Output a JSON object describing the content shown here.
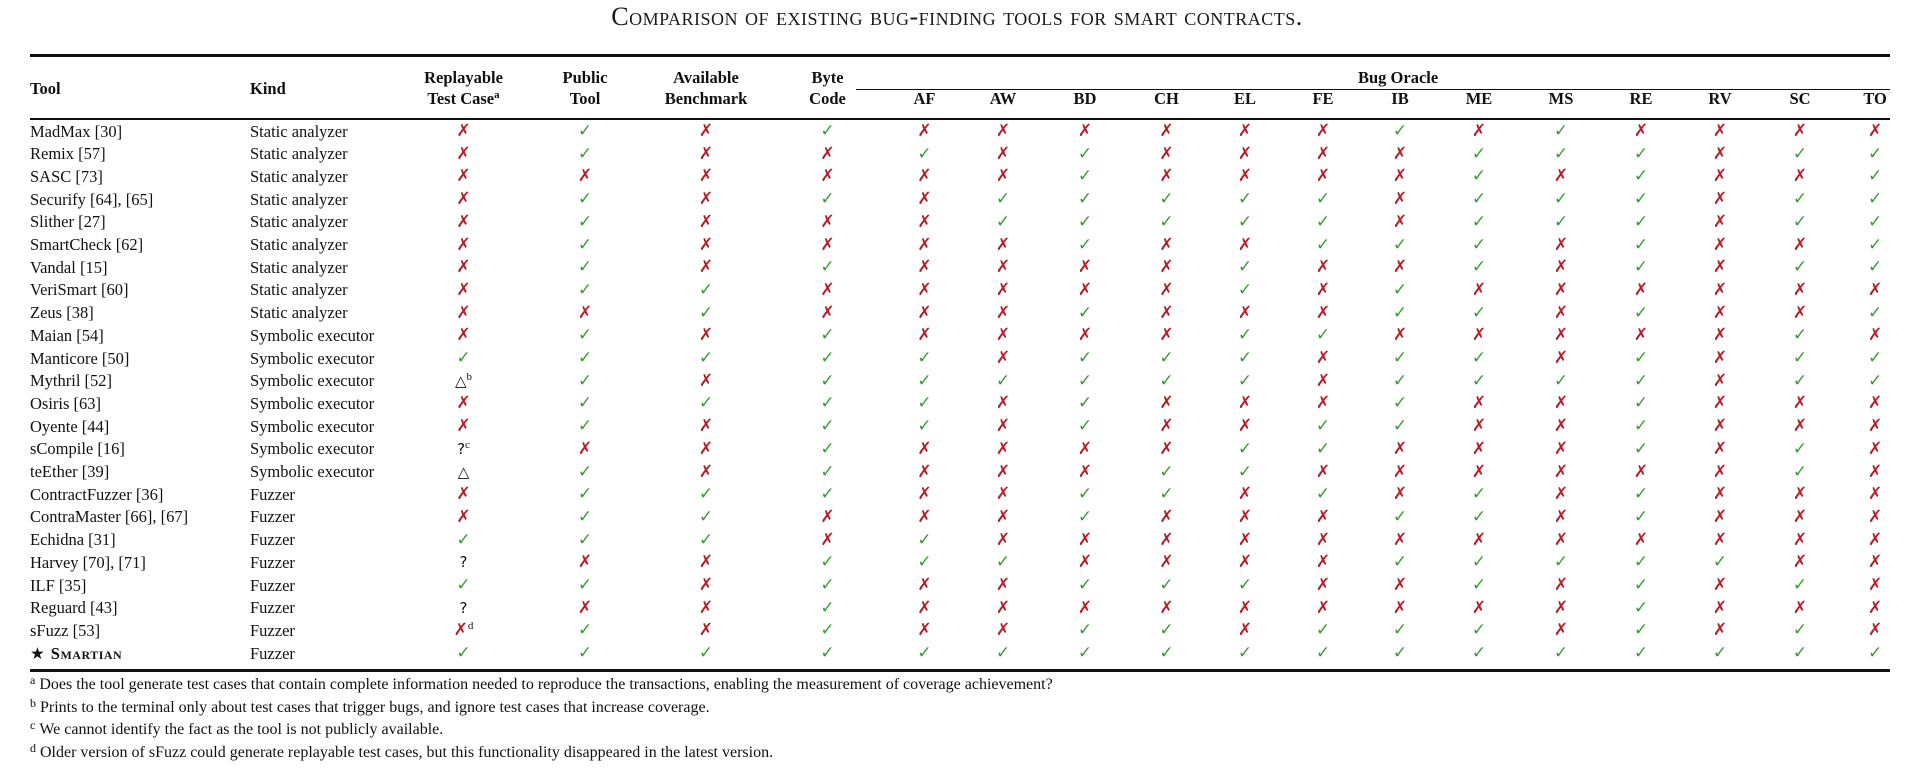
{
  "caption": "Comparison of existing bug-finding tools for smart contracts.",
  "headers": {
    "tool": "Tool",
    "kind": "Kind",
    "replayable_l1": "Replayable",
    "replayable_l2": "Test Case",
    "replayable_sup": "a",
    "public_l1": "Public",
    "public_l2": "Tool",
    "benchmark_l1": "Available",
    "benchmark_l2": "Benchmark",
    "bytecode_l1": "Byte",
    "bytecode_l2": "Code",
    "bug_oracle": "Bug Oracle",
    "oracles": [
      "AF",
      "AW",
      "BD",
      "CH",
      "EL",
      "FE",
      "IB",
      "ME",
      "MS",
      "RE",
      "RV",
      "SC",
      "TO"
    ]
  },
  "legend_symbols": {
    "check": "✓",
    "cross": "✗",
    "triangle": "△",
    "question": "?"
  },
  "colors": {
    "check": "#3a9a34",
    "cross": "#b3202a"
  },
  "rows": [
    {
      "tool": "MadMax [30]",
      "kind": "Static analyzer",
      "replay": "✗",
      "replay_sup": "",
      "public": "✓",
      "bench": "✗",
      "byte": "✓",
      "oracle": [
        "✗",
        "✗",
        "✗",
        "✗",
        "✗",
        "✗",
        "✓",
        "✗",
        "✓",
        "✗",
        "✗",
        "✗",
        "✗"
      ]
    },
    {
      "tool": "Remix [57]",
      "kind": "Static analyzer",
      "replay": "✗",
      "replay_sup": "",
      "public": "✓",
      "bench": "✗",
      "byte": "✗",
      "oracle": [
        "✓",
        "✗",
        "✓",
        "✗",
        "✗",
        "✗",
        "✗",
        "✓",
        "✓",
        "✓",
        "✗",
        "✓",
        "✓"
      ]
    },
    {
      "tool": "SASC [73]",
      "kind": "Static analyzer",
      "replay": "✗",
      "replay_sup": "",
      "public": "✗",
      "bench": "✗",
      "byte": "✗",
      "oracle": [
        "✗",
        "✗",
        "✓",
        "✗",
        "✗",
        "✗",
        "✗",
        "✓",
        "✗",
        "✓",
        "✗",
        "✗",
        "✓"
      ]
    },
    {
      "tool": "Securify [64], [65]",
      "kind": "Static analyzer",
      "replay": "✗",
      "replay_sup": "",
      "public": "✓",
      "bench": "✗",
      "byte": "✓",
      "oracle": [
        "✗",
        "✓",
        "✓",
        "✓",
        "✓",
        "✓",
        "✗",
        "✓",
        "✓",
        "✓",
        "✗",
        "✓",
        "✓"
      ]
    },
    {
      "tool": "Slither [27]",
      "kind": "Static analyzer",
      "replay": "✗",
      "replay_sup": "",
      "public": "✓",
      "bench": "✗",
      "byte": "✗",
      "oracle": [
        "✗",
        "✓",
        "✓",
        "✓",
        "✓",
        "✓",
        "✗",
        "✓",
        "✓",
        "✓",
        "✗",
        "✓",
        "✓"
      ]
    },
    {
      "tool": "SmartCheck [62]",
      "kind": "Static analyzer",
      "replay": "✗",
      "replay_sup": "",
      "public": "✓",
      "bench": "✗",
      "byte": "✗",
      "oracle": [
        "✗",
        "✗",
        "✓",
        "✗",
        "✗",
        "✓",
        "✓",
        "✓",
        "✗",
        "✓",
        "✗",
        "✗",
        "✓"
      ]
    },
    {
      "tool": "Vandal [15]",
      "kind": "Static analyzer",
      "replay": "✗",
      "replay_sup": "",
      "public": "✓",
      "bench": "✗",
      "byte": "✓",
      "oracle": [
        "✗",
        "✗",
        "✗",
        "✗",
        "✓",
        "✗",
        "✗",
        "✓",
        "✗",
        "✓",
        "✗",
        "✓",
        "✓"
      ]
    },
    {
      "tool": "VeriSmart [60]",
      "kind": "Static analyzer",
      "replay": "✗",
      "replay_sup": "",
      "public": "✓",
      "bench": "✓",
      "byte": "✗",
      "oracle": [
        "✗",
        "✗",
        "✗",
        "✗",
        "✓",
        "✗",
        "✓",
        "✗",
        "✗",
        "✗",
        "✗",
        "✗",
        "✗"
      ]
    },
    {
      "tool": "Zeus [38]",
      "kind": "Static analyzer",
      "replay": "✗",
      "replay_sup": "",
      "public": "✗",
      "bench": "✓",
      "byte": "✗",
      "oracle": [
        "✗",
        "✗",
        "✓",
        "✗",
        "✗",
        "✗",
        "✓",
        "✓",
        "✗",
        "✓",
        "✗",
        "✗",
        "✓"
      ]
    },
    {
      "tool": "Maian [54]",
      "kind": "Symbolic executor",
      "replay": "✗",
      "replay_sup": "",
      "public": "✓",
      "bench": "✗",
      "byte": "✓",
      "oracle": [
        "✗",
        "✗",
        "✗",
        "✗",
        "✓",
        "✓",
        "✗",
        "✗",
        "✗",
        "✗",
        "✗",
        "✓",
        "✗"
      ]
    },
    {
      "tool": "Manticore [50]",
      "kind": "Symbolic executor",
      "replay": "✓",
      "replay_sup": "",
      "public": "✓",
      "bench": "✓",
      "byte": "✓",
      "oracle": [
        "✓",
        "✗",
        "✓",
        "✓",
        "✓",
        "✗",
        "✓",
        "✓",
        "✗",
        "✓",
        "✗",
        "✓",
        "✓"
      ]
    },
    {
      "tool": "Mythril [52]",
      "kind": "Symbolic executor",
      "replay": "△",
      "replay_sup": "b",
      "public": "✓",
      "bench": "✗",
      "byte": "✓",
      "oracle": [
        "✓",
        "✓",
        "✓",
        "✓",
        "✓",
        "✗",
        "✓",
        "✓",
        "✓",
        "✓",
        "✗",
        "✓",
        "✓"
      ]
    },
    {
      "tool": "Osiris [63]",
      "kind": "Symbolic executor",
      "replay": "✗",
      "replay_sup": "",
      "public": "✓",
      "bench": "✓",
      "byte": "✓",
      "oracle": [
        "✓",
        "✗",
        "✓",
        "✗",
        "✗",
        "✗",
        "✓",
        "✗",
        "✗",
        "✓",
        "✗",
        "✗",
        "✗"
      ]
    },
    {
      "tool": "Oyente [44]",
      "kind": "Symbolic executor",
      "replay": "✗",
      "replay_sup": "",
      "public": "✓",
      "bench": "✗",
      "byte": "✓",
      "oracle": [
        "✓",
        "✗",
        "✓",
        "✗",
        "✗",
        "✓",
        "✓",
        "✗",
        "✗",
        "✓",
        "✗",
        "✗",
        "✗"
      ]
    },
    {
      "tool": "sCompile [16]",
      "kind": "Symbolic executor",
      "replay": "?",
      "replay_sup": "c",
      "public": "✗",
      "bench": "✗",
      "byte": "✓",
      "oracle": [
        "✗",
        "✗",
        "✗",
        "✗",
        "✓",
        "✓",
        "✗",
        "✗",
        "✗",
        "✓",
        "✗",
        "✓",
        "✗"
      ]
    },
    {
      "tool": "teEther [39]",
      "kind": "Symbolic executor",
      "replay": "△",
      "replay_sup": "",
      "public": "✓",
      "bench": "✗",
      "byte": "✓",
      "oracle": [
        "✗",
        "✗",
        "✗",
        "✓",
        "✓",
        "✗",
        "✗",
        "✗",
        "✗",
        "✗",
        "✗",
        "✓",
        "✗"
      ]
    },
    {
      "tool": "ContractFuzzer [36]",
      "kind": "Fuzzer",
      "replay": "✗",
      "replay_sup": "",
      "public": "✓",
      "bench": "✓",
      "byte": "✓",
      "oracle": [
        "✗",
        "✗",
        "✓",
        "✓",
        "✗",
        "✓",
        "✗",
        "✓",
        "✗",
        "✓",
        "✗",
        "✗",
        "✗"
      ]
    },
    {
      "tool": "ContraMaster [66], [67]",
      "kind": "Fuzzer",
      "replay": "✗",
      "replay_sup": "",
      "public": "✓",
      "bench": "✓",
      "byte": "✗",
      "oracle": [
        "✗",
        "✗",
        "✓",
        "✗",
        "✗",
        "✗",
        "✓",
        "✓",
        "✗",
        "✓",
        "✗",
        "✗",
        "✗"
      ]
    },
    {
      "tool": "Echidna [31]",
      "kind": "Fuzzer",
      "replay": "✓",
      "replay_sup": "",
      "public": "✓",
      "bench": "✓",
      "byte": "✗",
      "oracle": [
        "✓",
        "✗",
        "✗",
        "✗",
        "✗",
        "✗",
        "✗",
        "✗",
        "✗",
        "✗",
        "✗",
        "✗",
        "✗"
      ]
    },
    {
      "tool": "Harvey [70], [71]",
      "kind": "Fuzzer",
      "replay": "?",
      "replay_sup": "",
      "public": "✗",
      "bench": "✗",
      "byte": "✓",
      "oracle": [
        "✓",
        "✓",
        "✗",
        "✗",
        "✗",
        "✗",
        "✓",
        "✓",
        "✓",
        "✓",
        "✓",
        "✗",
        "✗"
      ]
    },
    {
      "tool": "ILF [35]",
      "kind": "Fuzzer",
      "replay": "✓",
      "replay_sup": "",
      "public": "✓",
      "bench": "✗",
      "byte": "✓",
      "oracle": [
        "✗",
        "✗",
        "✓",
        "✓",
        "✓",
        "✗",
        "✗",
        "✓",
        "✗",
        "✓",
        "✗",
        "✓",
        "✗"
      ]
    },
    {
      "tool": "Reguard [43]",
      "kind": "Fuzzer",
      "replay": "?",
      "replay_sup": "",
      "public": "✗",
      "bench": "✗",
      "byte": "✓",
      "oracle": [
        "✗",
        "✗",
        "✗",
        "✗",
        "✗",
        "✗",
        "✗",
        "✗",
        "✗",
        "✓",
        "✗",
        "✗",
        "✗"
      ]
    },
    {
      "tool": "sFuzz [53]",
      "kind": "Fuzzer",
      "replay": "✗",
      "replay_sup": "d",
      "public": "✓",
      "bench": "✗",
      "byte": "✓",
      "oracle": [
        "✗",
        "✗",
        "✓",
        "✓",
        "✗",
        "✓",
        "✓",
        "✓",
        "✗",
        "✓",
        "✗",
        "✓",
        "✗"
      ]
    },
    {
      "tool": "Smartian",
      "tool_prefix": "★",
      "highlight": true,
      "kind": "Fuzzer",
      "replay": "✓",
      "replay_sup": "",
      "public": "✓",
      "bench": "✓",
      "byte": "✓",
      "oracle": [
        "✓",
        "✓",
        "✓",
        "✓",
        "✓",
        "✓",
        "✓",
        "✓",
        "✓",
        "✓",
        "✓",
        "✓",
        "✓"
      ]
    }
  ],
  "notes": [
    {
      "mark": "a",
      "text": "Does the tool generate test cases that contain complete information needed to reproduce the transactions, enabling the measurement of coverage achievement?"
    },
    {
      "mark": "b",
      "text": "Prints to the terminal only about test cases that trigger bugs, and ignore test cases that increase coverage."
    },
    {
      "mark": "c",
      "text": "We cannot identify the fact as the tool is not publicly available."
    },
    {
      "mark": "d",
      "text": "Older version of sFuzz could generate replayable test cases, but this functionality disappeared in the latest version."
    }
  ]
}
